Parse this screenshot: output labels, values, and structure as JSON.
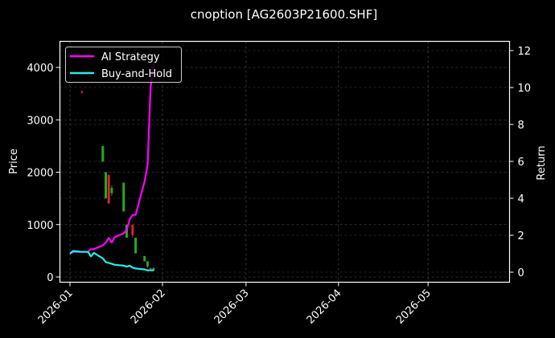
{
  "chart_data": {
    "type": "line",
    "title": "cnoption [AG2603P21600.SHF]",
    "xlabel": "",
    "ylabel": "Price",
    "y2label": "Return",
    "ylim": [
      -100,
      4500
    ],
    "y2lim": [
      -0.6,
      12.4
    ],
    "grid": true,
    "legend_position": "upper left",
    "x_tick_labels": [
      "2026-01",
      "2026-02",
      "2026-03",
      "2026-04",
      "2026-05"
    ],
    "y_ticks": [
      0,
      1000,
      2000,
      3000,
      4000
    ],
    "y2_ticks": [
      0,
      2,
      4,
      6,
      8,
      10,
      12
    ],
    "legend": [
      "AI Strategy",
      "Buy-and-Hold"
    ],
    "series": [
      {
        "name": "AI Strategy",
        "axis": "right",
        "color": "#ff00ff",
        "x": [
          "2026-01-01",
          "2026-01-02",
          "2026-01-05",
          "2026-01-06",
          "2026-01-07",
          "2026-01-08",
          "2026-01-09",
          "2026-01-12",
          "2026-01-13",
          "2026-01-14",
          "2026-01-15",
          "2026-01-16",
          "2026-01-19",
          "2026-01-20",
          "2026-01-21",
          "2026-01-22",
          "2026-01-23",
          "2026-01-26",
          "2026-01-27",
          "2026-01-28",
          "2026-01-29"
        ],
        "values": [
          1.0,
          1.1,
          1.1,
          1.1,
          1.1,
          1.25,
          1.25,
          1.45,
          1.6,
          1.85,
          1.6,
          1.9,
          2.1,
          2.3,
          2.85,
          3.1,
          3.1,
          4.9,
          5.8,
          10.0,
          11.3
        ]
      },
      {
        "name": "Buy-and-Hold",
        "axis": "right",
        "color": "#22eeee",
        "x": [
          "2026-01-01",
          "2026-01-02",
          "2026-01-05",
          "2026-01-06",
          "2026-01-07",
          "2026-01-08",
          "2026-01-09",
          "2026-01-12",
          "2026-01-13",
          "2026-01-14",
          "2026-01-15",
          "2026-01-16",
          "2026-01-19",
          "2026-01-20",
          "2026-01-21",
          "2026-01-22",
          "2026-01-23",
          "2026-01-26",
          "2026-01-27",
          "2026-01-28",
          "2026-01-29"
        ],
        "values": [
          1.0,
          1.15,
          1.1,
          1.1,
          1.1,
          0.85,
          1.05,
          0.75,
          0.55,
          0.5,
          0.45,
          0.4,
          0.35,
          0.3,
          0.35,
          0.25,
          0.2,
          0.15,
          0.1,
          0.1,
          0.1
        ]
      },
      {
        "name": "Price candles",
        "axis": "left",
        "type": "candlestick",
        "up_color": "#22aa22",
        "down_color": "#dd2222",
        "candles": [
          {
            "x": "2026-01-05",
            "open": 3540,
            "close": 3520,
            "high": 3560,
            "low": 3500
          },
          {
            "x": "2026-01-12",
            "open": 2200,
            "close": 2500,
            "high": 2500,
            "low": 2200
          },
          {
            "x": "2026-01-13",
            "open": 1500,
            "close": 2000,
            "high": 2000,
            "low": 1500
          },
          {
            "x": "2026-01-14",
            "open": 1950,
            "close": 1400,
            "high": 1950,
            "low": 1400
          },
          {
            "x": "2026-01-15",
            "open": 1600,
            "close": 1700,
            "high": 1750,
            "low": 1550
          },
          {
            "x": "2026-01-19",
            "open": 1250,
            "close": 1800,
            "high": 1800,
            "low": 1250
          },
          {
            "x": "2026-01-20",
            "open": 750,
            "close": 1000,
            "high": 1000,
            "low": 750
          },
          {
            "x": "2026-01-22",
            "open": 1000,
            "close": 800,
            "high": 1000,
            "low": 750
          },
          {
            "x": "2026-01-23",
            "open": 450,
            "close": 750,
            "high": 750,
            "low": 450
          },
          {
            "x": "2026-01-26",
            "open": 300,
            "close": 400,
            "high": 400,
            "low": 300
          },
          {
            "x": "2026-01-27",
            "open": 200,
            "close": 300,
            "high": 300,
            "low": 180
          },
          {
            "x": "2026-01-28",
            "open": 170,
            "close": 150,
            "high": 180,
            "low": 140
          },
          {
            "x": "2026-01-29",
            "open": 120,
            "close": 170,
            "high": 180,
            "low": 110
          }
        ]
      }
    ]
  },
  "title": "cnoption [AG2603P21600.SHF]",
  "axes": {
    "ylabel": "Price",
    "y2label": "Return",
    "y_ticks": [
      "0",
      "1000",
      "2000",
      "3000",
      "4000"
    ],
    "y2_ticks": [
      "0",
      "2",
      "4",
      "6",
      "8",
      "10",
      "12"
    ],
    "x_ticks": [
      "2026-01",
      "2026-02",
      "2026-03",
      "2026-04",
      "2026-05"
    ]
  },
  "legend": {
    "items": [
      {
        "label": "AI Strategy",
        "color": "#ff00ff"
      },
      {
        "label": "Buy-and-Hold",
        "color": "#22eeee"
      }
    ]
  }
}
